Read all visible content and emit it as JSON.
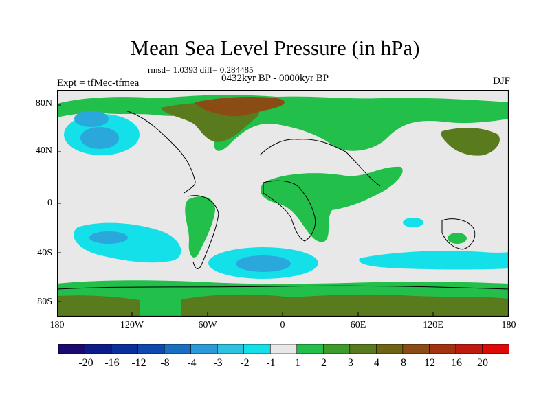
{
  "title": "Mean Sea Level Pressure (in hPa)",
  "stats": "rmsd= 1.0393 diff= 0.284485",
  "experiment": "Expt = tfMec-tfmea",
  "period": "0432kyr BP - 0000kyr BP",
  "season": "DJF",
  "y_axis": [
    "80N",
    "40N",
    "0",
    "40S",
    "80S"
  ],
  "x_axis": [
    "180",
    "120W",
    "60W",
    "0",
    "60E",
    "120E",
    "180"
  ],
  "legend": {
    "labels": [
      "-20",
      "-16",
      "-12",
      "-8",
      "-4",
      "-3",
      "-2",
      "-1",
      "1",
      "2",
      "3",
      "4",
      "8",
      "12",
      "16",
      "20"
    ],
    "colors": [
      "#1a0a6e",
      "#0b1c8a",
      "#0a2e9e",
      "#0f48b0",
      "#1a6fc2",
      "#2a9bd8",
      "#2cc2e0",
      "#14e0ea",
      "#e8e8e8",
      "#22bf4a",
      "#3f9a2c",
      "#5a7a1e",
      "#6f6414",
      "#8a4b14",
      "#a23210",
      "#be1a10",
      "#de0a0a"
    ]
  },
  "colors": {
    "neutral": "#e8e8e8",
    "positive_low": "#22bf4a",
    "positive_mid": "#3f9a2c",
    "positive_high": "#6f6414",
    "positive_peak": "#8a4b14",
    "negative_low": "#14e0ea",
    "negative_mid": "#2cc2e0",
    "negative_high": "#1a9fd8"
  }
}
